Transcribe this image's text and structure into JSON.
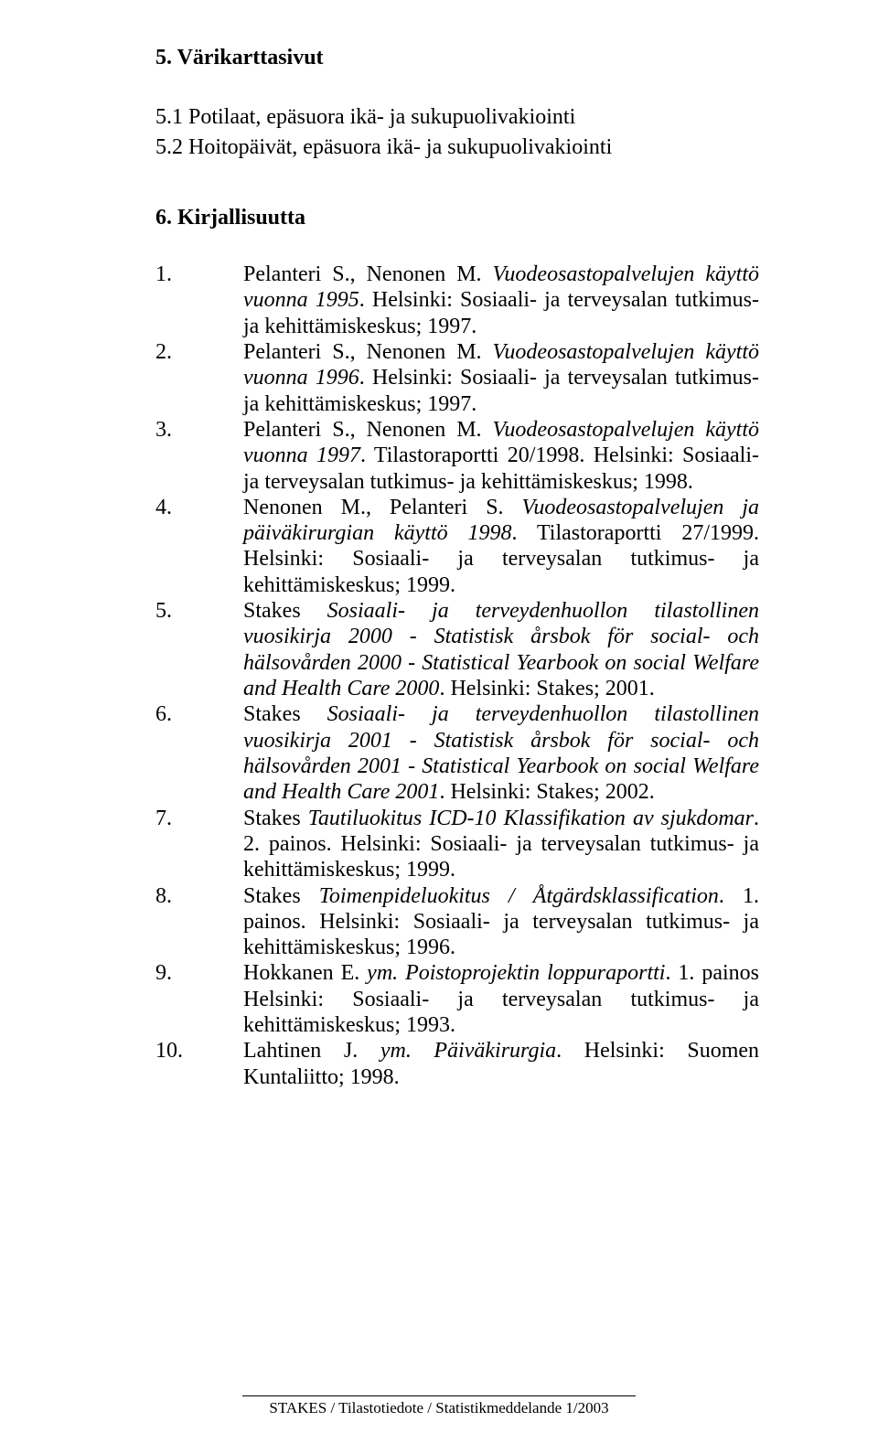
{
  "headings": {
    "sec5": "5. Värikarttasivut",
    "sec51": "5.1 Potilaat, epäsuora ikä- ja sukupuolivakiointi",
    "sec52": "5.2 Hoitopäivät, epäsuora ikä- ja sukupuolivakiointi",
    "sec6": "6. Kirjallisuutta"
  },
  "refs": [
    {
      "num": "1.",
      "parts": [
        {
          "t": "Pelanteri S., Nenonen M. ",
          "i": false
        },
        {
          "t": "Vuodeosastopalvelujen käyttö vuonna 1995",
          "i": true
        },
        {
          "t": ". Helsinki: Sosiaali- ja terveysalan tutkimus- ja kehittämiskeskus; 1997.",
          "i": false
        }
      ]
    },
    {
      "num": "2.",
      "parts": [
        {
          "t": "Pelanteri S., Nenonen M. ",
          "i": false
        },
        {
          "t": "Vuodeosastopalvelujen käyttö vuonna 1996",
          "i": true
        },
        {
          "t": ". Helsinki: Sosiaali- ja terveysalan tutkimus- ja kehittämiskeskus; 1997.",
          "i": false
        }
      ]
    },
    {
      "num": "3.",
      "parts": [
        {
          "t": "Pelanteri S., Nenonen M. ",
          "i": false
        },
        {
          "t": "Vuodeosastopalvelujen käyttö vuonna 1997",
          "i": true
        },
        {
          "t": ". Tilastoraportti 20/1998. Helsinki: Sosiaali- ja terveysalan tutkimus- ja kehittämiskeskus; 1998.",
          "i": false
        }
      ]
    },
    {
      "num": "4.",
      "parts": [
        {
          "t": "Nenonen M., Pelanteri S. ",
          "i": false
        },
        {
          "t": "Vuodeosastopalvelujen ja päiväkirurgian käyttö 1998",
          "i": true
        },
        {
          "t": ". Tilastoraportti 27/1999. Helsinki: Sosiaali- ja terveysalan tutkimus- ja kehittämiskeskus; 1999.",
          "i": false
        }
      ]
    },
    {
      "num": "5.",
      "parts": [
        {
          "t": "Stakes ",
          "i": false
        },
        {
          "t": "Sosiaali- ja terveydenhuollon tilastollinen vuosikirja 2000 - Statistisk årsbok för social- och hälsovården 2000 - Statistical Yearbook on social Welfare and Health Care 2000",
          "i": true
        },
        {
          "t": ". Helsinki: Stakes; 2001.",
          "i": false
        }
      ]
    },
    {
      "num": "6.",
      "parts": [
        {
          "t": "Stakes ",
          "i": false
        },
        {
          "t": "Sosiaali- ja terveydenhuollon tilastollinen vuosikirja 2001 - Statistisk årsbok för social- och hälsovården 2001 - Statistical Yearbook on social Welfare and Health Care 2001",
          "i": true
        },
        {
          "t": ". Helsinki: Stakes; 2002.",
          "i": false
        }
      ]
    },
    {
      "num": "7.",
      "parts": [
        {
          "t": "Stakes ",
          "i": false
        },
        {
          "t": "Tautiluokitus ICD-10 Klassifikation av sjukdomar",
          "i": true
        },
        {
          "t": ". 2. painos. Helsinki: Sosiaali- ja terveysalan tutkimus- ja kehittämiskeskus; 1999.",
          "i": false
        }
      ]
    },
    {
      "num": "8.",
      "parts": [
        {
          "t": "Stakes ",
          "i": false
        },
        {
          "t": "Toimenpideluokitus / Åtgärdsklassification",
          "i": true
        },
        {
          "t": ". 1. painos. Helsinki: Sosiaali- ja terveysalan tutkimus- ja kehittämiskeskus; 1996.",
          "i": false
        }
      ]
    },
    {
      "num": "9.",
      "parts": [
        {
          "t": "Hokkanen E. ",
          "i": false
        },
        {
          "t": "ym. Poistoprojektin loppuraportti",
          "i": true
        },
        {
          "t": ". 1. painos Helsinki: Sosiaali- ja terveysalan tutkimus- ja kehittämiskeskus; 1993.",
          "i": false
        }
      ]
    },
    {
      "num": "10.",
      "parts": [
        {
          "t": "Lahtinen J. ",
          "i": false
        },
        {
          "t": "ym. Päiväkirurgia",
          "i": true
        },
        {
          "t": ". Helsinki: Suomen Kuntaliitto; 1998.",
          "i": false
        }
      ]
    }
  ],
  "footer": "STAKES / Tilastotiedote / Statistikmeddelande 1/2003"
}
